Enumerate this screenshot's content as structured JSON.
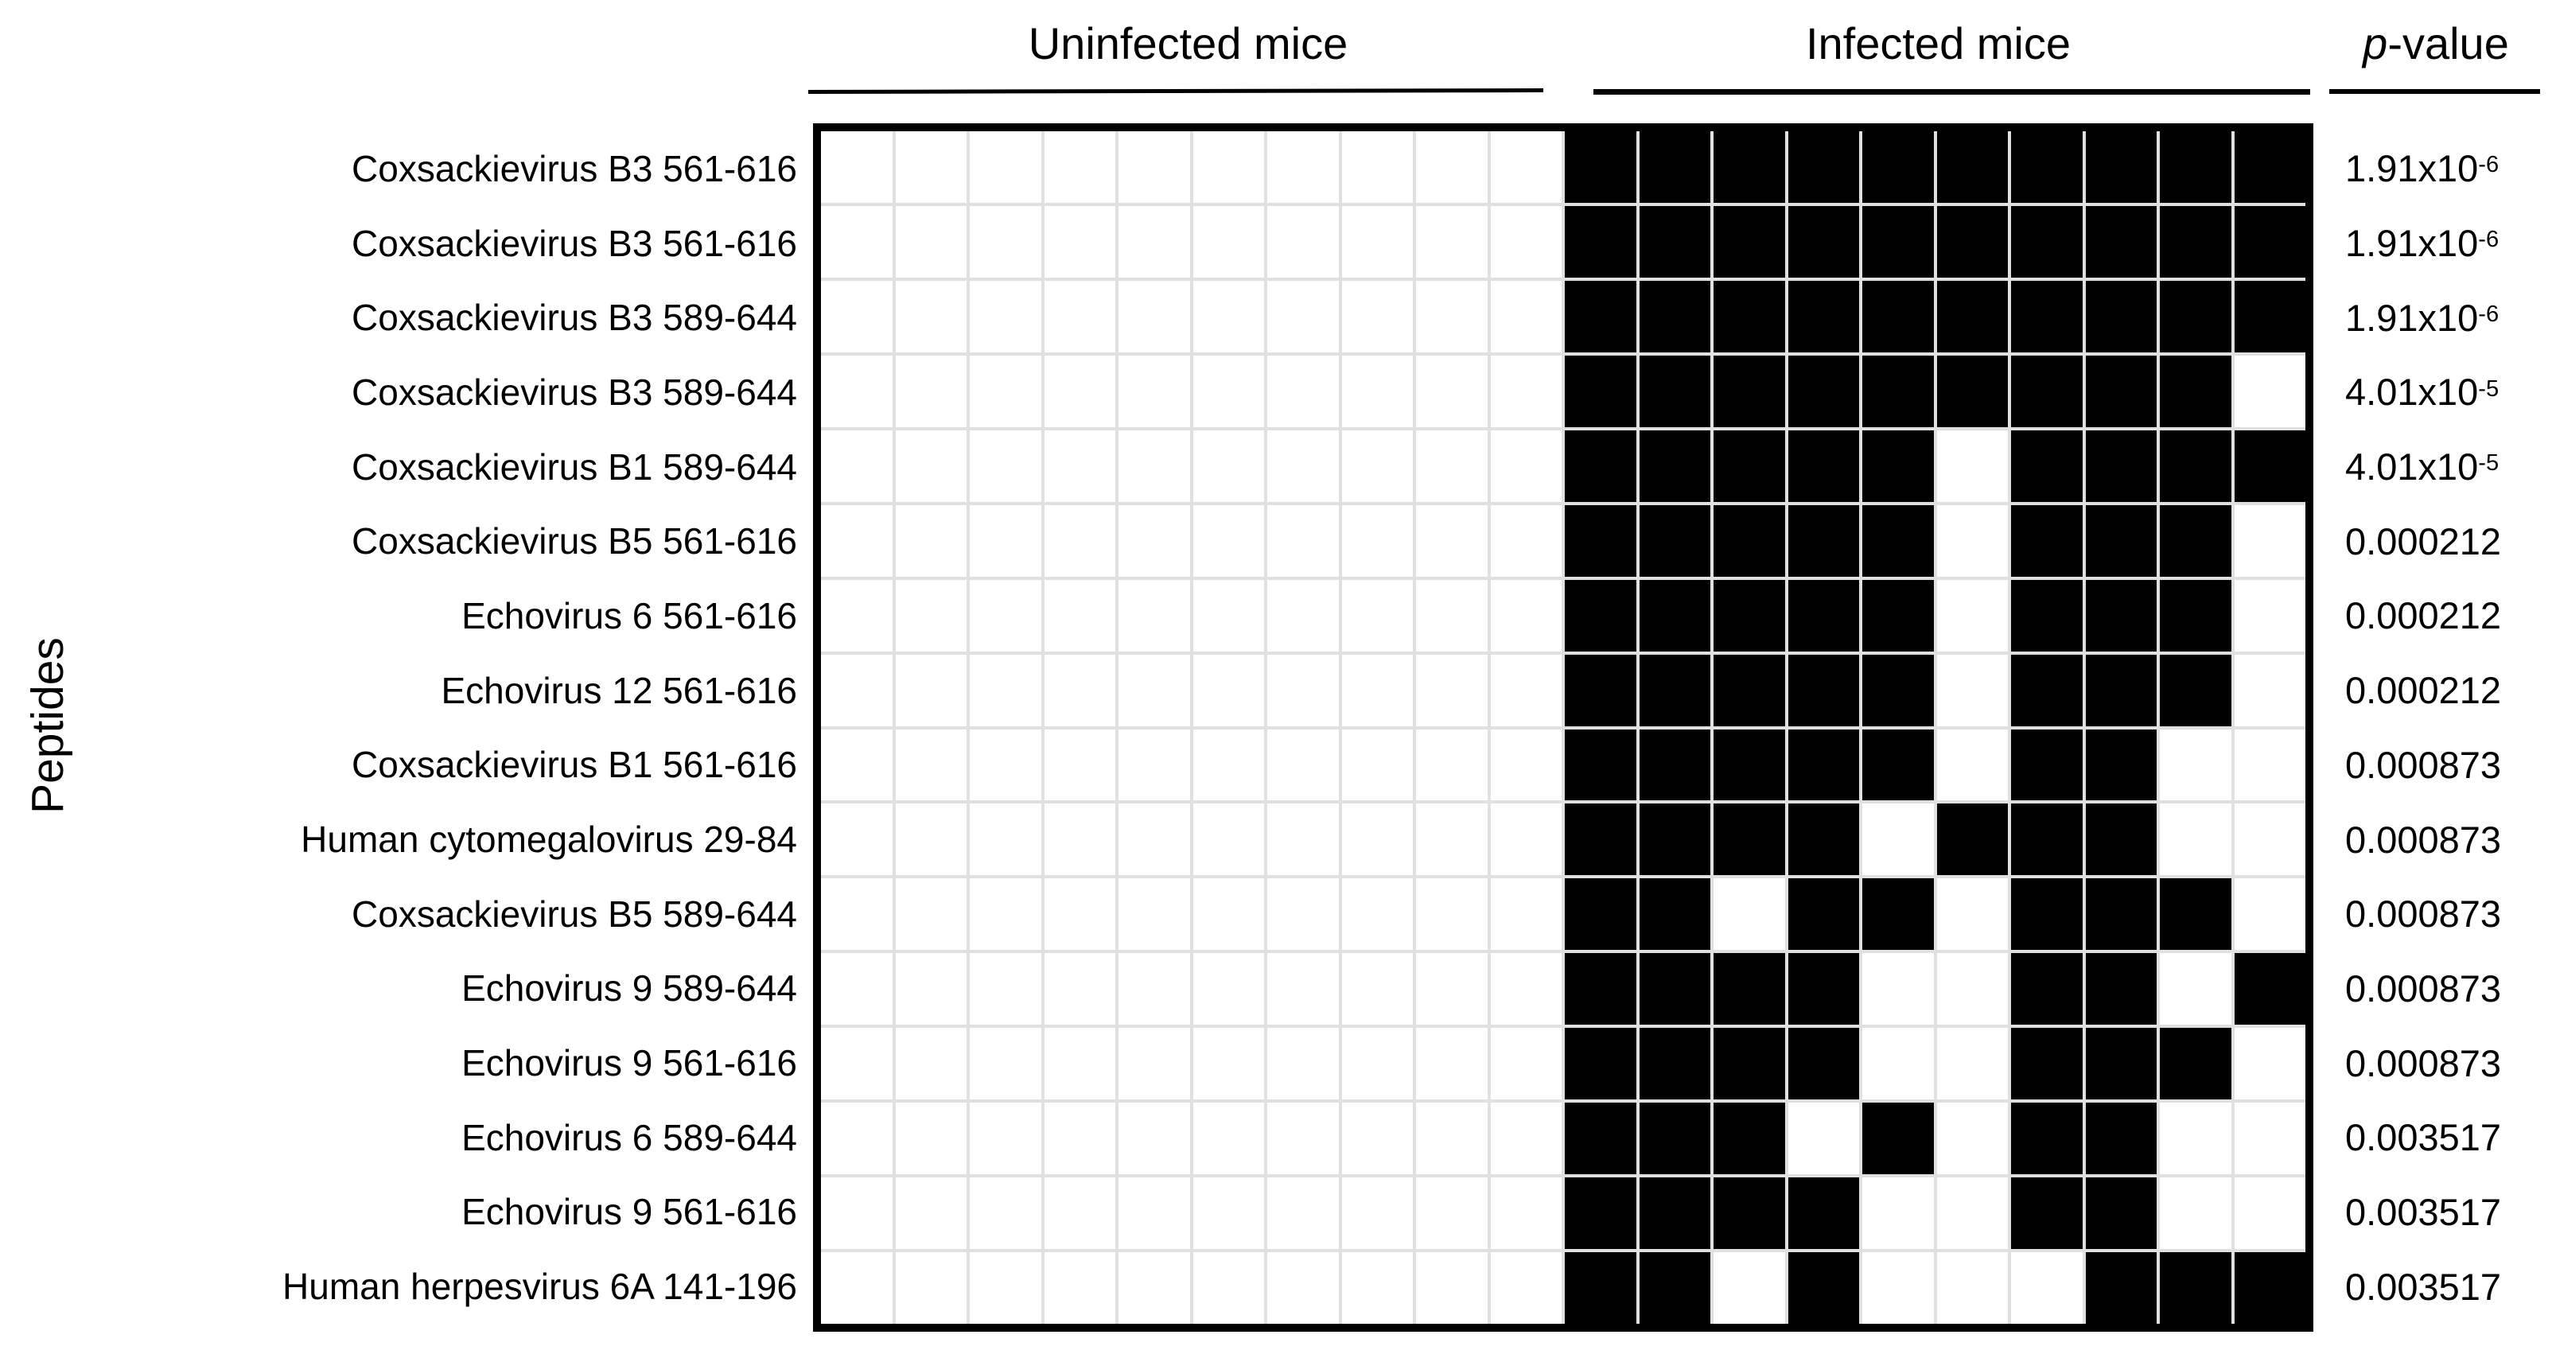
{
  "figure": {
    "ylabel": "Peptides",
    "headers": {
      "uninfected": "Uninfected mice",
      "infected": "Infected mice",
      "pvalue_italic": "p",
      "pvalue_rest": "-value"
    }
  },
  "colors": {
    "filled": "#000000",
    "empty": "#ffffff",
    "gridline": "#e0e0e0",
    "border": "#000000"
  },
  "chart_data": {
    "type": "heatmap",
    "title": "",
    "ylabel": "Peptides",
    "cell_encoding": {
      "1": "reactive (black cell)",
      "0": "non-reactive (white cell)"
    },
    "column_groups": [
      {
        "label": "Uninfected mice",
        "columns": 10
      },
      {
        "label": "Infected mice",
        "columns": 10
      }
    ],
    "pvalue_header": "p-value",
    "rows": [
      {
        "peptide": "Coxsackievirus B3 561-616",
        "uninfected": [
          0,
          0,
          0,
          0,
          0,
          0,
          0,
          0,
          0,
          0
        ],
        "infected": [
          1,
          1,
          1,
          1,
          1,
          1,
          1,
          1,
          1,
          1
        ],
        "p_base": "1.91x10",
        "p_sup": "-6"
      },
      {
        "peptide": "Coxsackievirus B3 561-616",
        "uninfected": [
          0,
          0,
          0,
          0,
          0,
          0,
          0,
          0,
          0,
          0
        ],
        "infected": [
          1,
          1,
          1,
          1,
          1,
          1,
          1,
          1,
          1,
          1
        ],
        "p_base": "1.91x10",
        "p_sup": "-6"
      },
      {
        "peptide": "Coxsackievirus B3 589-644",
        "uninfected": [
          0,
          0,
          0,
          0,
          0,
          0,
          0,
          0,
          0,
          0
        ],
        "infected": [
          1,
          1,
          1,
          1,
          1,
          1,
          1,
          1,
          1,
          1
        ],
        "p_base": "1.91x10",
        "p_sup": "-6"
      },
      {
        "peptide": "Coxsackievirus B3 589-644",
        "uninfected": [
          0,
          0,
          0,
          0,
          0,
          0,
          0,
          0,
          0,
          0
        ],
        "infected": [
          1,
          1,
          1,
          1,
          1,
          1,
          1,
          1,
          1,
          0
        ],
        "p_base": "4.01x10",
        "p_sup": "-5"
      },
      {
        "peptide": "Coxsackievirus B1 589-644",
        "uninfected": [
          0,
          0,
          0,
          0,
          0,
          0,
          0,
          0,
          0,
          0
        ],
        "infected": [
          1,
          1,
          1,
          1,
          1,
          0,
          1,
          1,
          1,
          1
        ],
        "p_base": "4.01x10",
        "p_sup": "-5"
      },
      {
        "peptide": "Coxsackievirus B5 561-616",
        "uninfected": [
          0,
          0,
          0,
          0,
          0,
          0,
          0,
          0,
          0,
          0
        ],
        "infected": [
          1,
          1,
          1,
          1,
          1,
          0,
          1,
          1,
          1,
          0
        ],
        "p_base": "0.000212",
        "p_sup": ""
      },
      {
        "peptide": "Echovirus 6 561-616",
        "uninfected": [
          0,
          0,
          0,
          0,
          0,
          0,
          0,
          0,
          0,
          0
        ],
        "infected": [
          1,
          1,
          1,
          1,
          1,
          0,
          1,
          1,
          1,
          0
        ],
        "p_base": "0.000212",
        "p_sup": ""
      },
      {
        "peptide": "Echovirus 12 561-616",
        "uninfected": [
          0,
          0,
          0,
          0,
          0,
          0,
          0,
          0,
          0,
          0
        ],
        "infected": [
          1,
          1,
          1,
          1,
          1,
          0,
          1,
          1,
          1,
          0
        ],
        "p_base": "0.000212",
        "p_sup": ""
      },
      {
        "peptide": "Coxsackievirus B1 561-616",
        "uninfected": [
          0,
          0,
          0,
          0,
          0,
          0,
          0,
          0,
          0,
          0
        ],
        "infected": [
          1,
          1,
          1,
          1,
          1,
          0,
          1,
          1,
          0,
          0
        ],
        "p_base": "0.000873",
        "p_sup": ""
      },
      {
        "peptide": "Human cytomegalovirus 29-84",
        "uninfected": [
          0,
          0,
          0,
          0,
          0,
          0,
          0,
          0,
          0,
          0
        ],
        "infected": [
          1,
          1,
          1,
          1,
          0,
          1,
          1,
          1,
          0,
          0
        ],
        "p_base": "0.000873",
        "p_sup": ""
      },
      {
        "peptide": "Coxsackievirus B5 589-644",
        "uninfected": [
          0,
          0,
          0,
          0,
          0,
          0,
          0,
          0,
          0,
          0
        ],
        "infected": [
          1,
          1,
          0,
          1,
          1,
          0,
          1,
          1,
          1,
          0
        ],
        "p_base": "0.000873",
        "p_sup": ""
      },
      {
        "peptide": "Echovirus 9 589-644",
        "uninfected": [
          0,
          0,
          0,
          0,
          0,
          0,
          0,
          0,
          0,
          0
        ],
        "infected": [
          1,
          1,
          1,
          1,
          0,
          0,
          1,
          1,
          0,
          1
        ],
        "p_base": "0.000873",
        "p_sup": ""
      },
      {
        "peptide": "Echovirus 9 561-616",
        "uninfected": [
          0,
          0,
          0,
          0,
          0,
          0,
          0,
          0,
          0,
          0
        ],
        "infected": [
          1,
          1,
          1,
          1,
          0,
          0,
          1,
          1,
          1,
          0
        ],
        "p_base": "0.000873",
        "p_sup": ""
      },
      {
        "peptide": "Echovirus 6 589-644",
        "uninfected": [
          0,
          0,
          0,
          0,
          0,
          0,
          0,
          0,
          0,
          0
        ],
        "infected": [
          1,
          1,
          1,
          0,
          1,
          0,
          1,
          1,
          0,
          0
        ],
        "p_base": "0.003517",
        "p_sup": ""
      },
      {
        "peptide": "Echovirus 9 561-616",
        "uninfected": [
          0,
          0,
          0,
          0,
          0,
          0,
          0,
          0,
          0,
          0
        ],
        "infected": [
          1,
          1,
          1,
          1,
          0,
          0,
          1,
          1,
          0,
          0
        ],
        "p_base": "0.003517",
        "p_sup": ""
      },
      {
        "peptide": "Human herpesvirus 6A 141-196",
        "uninfected": [
          0,
          0,
          0,
          0,
          0,
          0,
          0,
          0,
          0,
          0
        ],
        "infected": [
          1,
          1,
          0,
          1,
          0,
          0,
          0,
          1,
          1,
          1
        ],
        "p_base": "0.003517",
        "p_sup": ""
      }
    ]
  }
}
